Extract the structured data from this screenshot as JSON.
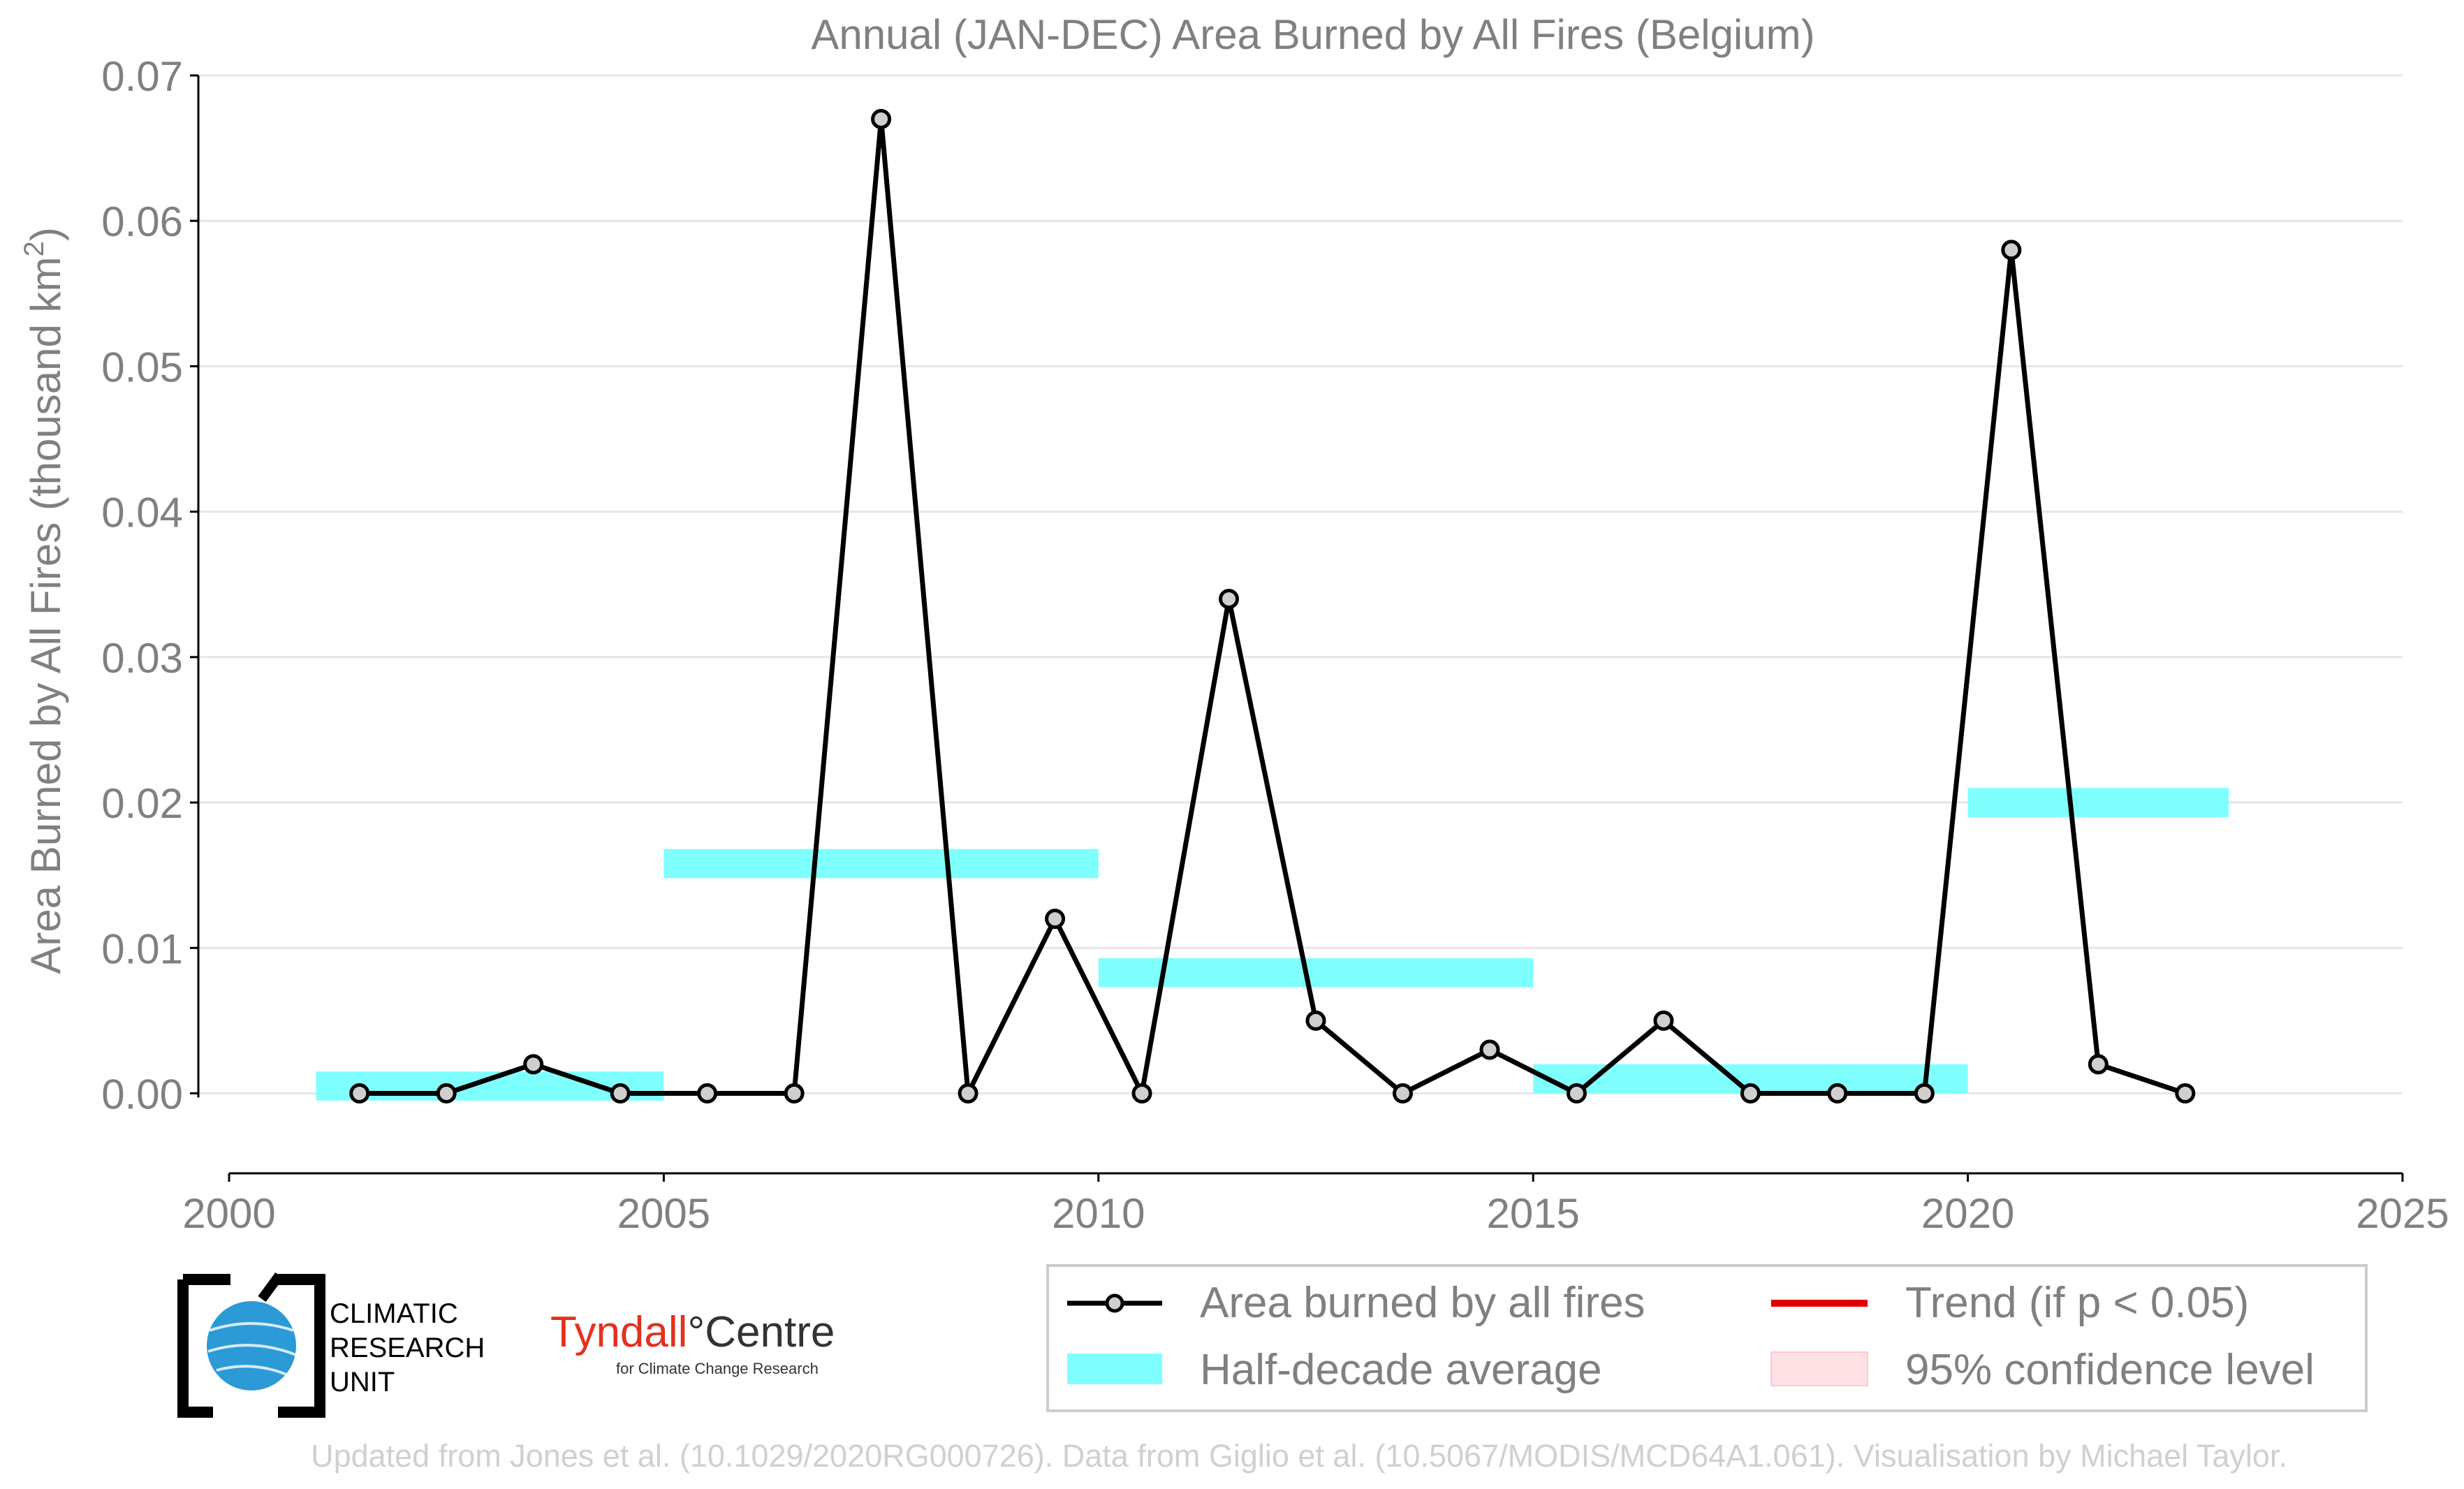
{
  "chart_data": {
    "type": "line",
    "title": "Annual (JAN-DEC) Area Burned by All Fires (Belgium)",
    "xlabel": "",
    "ylabel_main": "Area Burned by All Fires (thousand km",
    "ylabel_sup": "2",
    "ylabel_close": ")",
    "xlim": [
      2000,
      2025
    ],
    "ylim": [
      -0.0055,
      0.07
    ],
    "x_ticks": [
      2000,
      2005,
      2010,
      2015,
      2020,
      2025
    ],
    "y_ticks": [
      0.0,
      0.01,
      0.02,
      0.03,
      0.04,
      0.05,
      0.06,
      0.07
    ],
    "y_tick_labels": [
      "0.00",
      "0.01",
      "0.02",
      "0.03",
      "0.04",
      "0.05",
      "0.06",
      "0.07"
    ],
    "grid": "horizontal",
    "legend_position": "bottom-right",
    "series": [
      {
        "name": "Area burned by all fires",
        "color": "#000000",
        "x": [
          2001.5,
          2002.5,
          2003.5,
          2004.5,
          2005.5,
          2006.5,
          2007.5,
          2008.5,
          2009.5,
          2010.5,
          2011.5,
          2012.5,
          2013.5,
          2014.5,
          2015.5,
          2016.5,
          2017.5,
          2018.5,
          2019.5,
          2020.5,
          2021.5,
          2022.5
        ],
        "values": [
          0.0,
          0.0,
          0.002,
          0.0,
          0.0,
          0.0,
          0.067,
          0.0,
          0.012,
          0.0,
          0.034,
          0.005,
          0.0,
          0.003,
          0.0,
          0.005,
          0.0,
          0.0,
          0.0,
          0.058,
          0.002,
          0.0
        ]
      }
    ],
    "half_decade_average": {
      "name": "Half-decade average",
      "color": "#80ffff",
      "segments": [
        {
          "x_start": 2001,
          "x_end": 2005,
          "value": 0.0005
        },
        {
          "x_start": 2005,
          "x_end": 2010,
          "value": 0.0158
        },
        {
          "x_start": 2010,
          "x_end": 2015,
          "value": 0.0083
        },
        {
          "x_start": 2015,
          "x_end": 2020,
          "value": 0.001
        },
        {
          "x_start": 2020,
          "x_end": 2023,
          "value": 0.02
        }
      ]
    },
    "legend": {
      "line_label": "Area burned by all fires",
      "avg_label": "Half-decade average",
      "trend_label": "Trend (if p < 0.05)",
      "ci_label": "95% confidence level",
      "trend_color": "#e00000",
      "ci_color": "#ffe0e4"
    }
  },
  "logos": {
    "cru_line1": "CLIMATIC",
    "cru_line2": "RESEARCH",
    "cru_line3": "UNIT",
    "tyndall_name": "Tyndall",
    "tyndall_centre": "°Centre",
    "tyndall_sub": "for Climate Change Research"
  },
  "footer": "Updated from Jones et al. (10.1029/2020RG000726). Data from Giglio et al. (10.5067/MODIS/MCD64A1.061). Visualisation by Michael Taylor."
}
